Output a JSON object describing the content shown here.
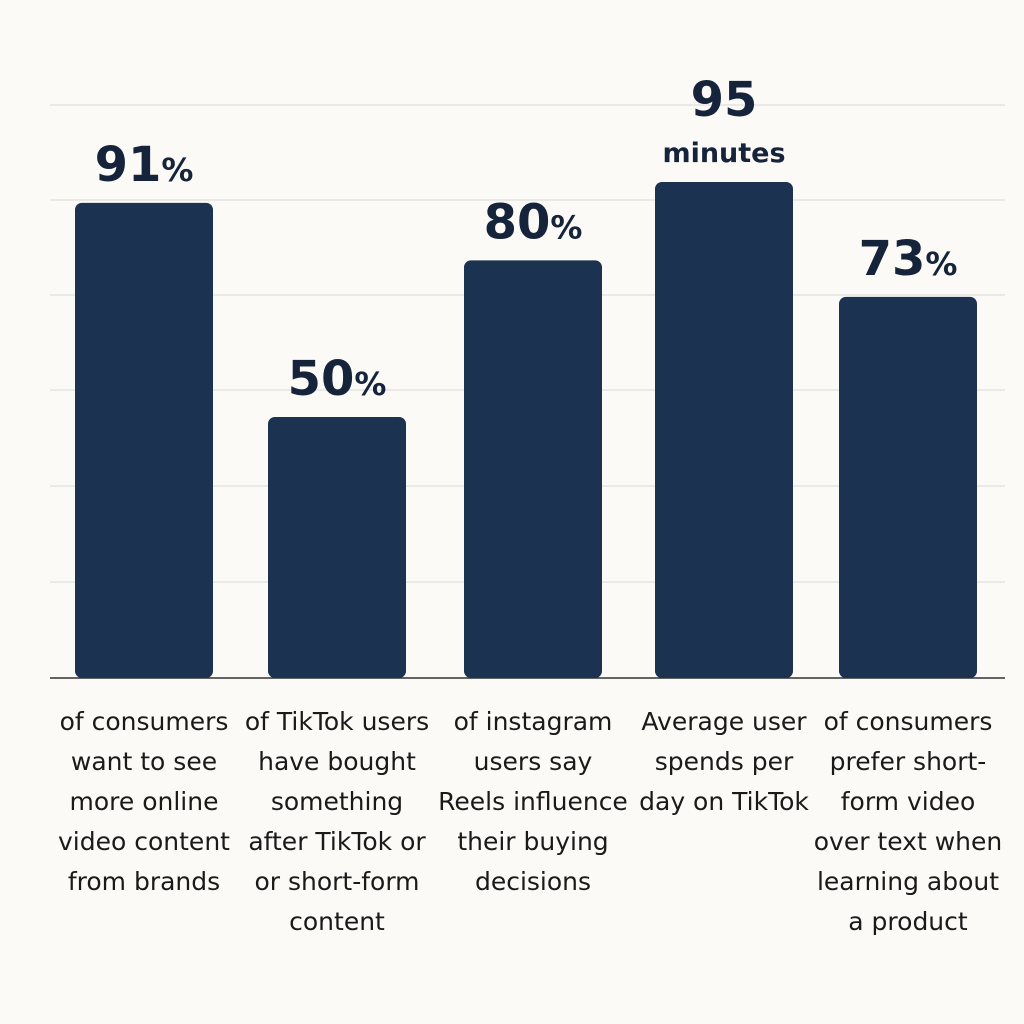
{
  "chart_data": {
    "type": "bar",
    "categories": [
      "of consumers want to see more online video content from brands",
      "of TikTok users have bought something after TikTok or or short-form content",
      "of instagram users say Reels influence their buying decisions",
      "Average user spends per day on TikTok",
      "of consumers prefer short-form video over text when learning about a product"
    ],
    "values": [
      91,
      50,
      80,
      95,
      73
    ],
    "value_labels": [
      "91%",
      "50%",
      "80%",
      "95 minutes",
      "73%"
    ],
    "color": "#1b3250"
  }
}
